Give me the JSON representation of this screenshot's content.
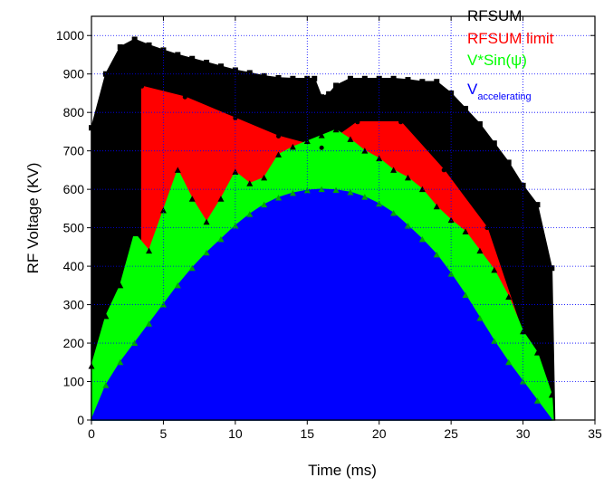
{
  "chart_data": {
    "type": "area",
    "xlabel": "Time (ms)",
    "ylabel": "RF Voltage (KV)",
    "xlim": [
      0,
      35
    ],
    "ylim": [
      0,
      1050
    ],
    "x_ticks": [
      "0",
      "5",
      "10",
      "15",
      "20",
      "25",
      "30",
      "35"
    ],
    "y_ticks": [
      "0",
      "100",
      "200",
      "300",
      "400",
      "500",
      "600",
      "700",
      "800",
      "900",
      "1000"
    ],
    "grid": "dotted, x and y",
    "legend": "top-right, text only",
    "series": [
      {
        "name": "RFSUM",
        "color": "#000000",
        "points": [
          [
            0,
            760
          ],
          [
            1,
            900
          ],
          [
            2,
            970
          ],
          [
            3,
            990
          ],
          [
            4,
            975
          ],
          [
            5,
            962
          ],
          [
            6,
            950
          ],
          [
            7,
            940
          ],
          [
            8,
            930
          ],
          [
            9,
            920
          ],
          [
            10,
            910
          ],
          [
            11,
            903
          ],
          [
            12,
            895
          ],
          [
            13,
            890
          ],
          [
            14,
            888
          ],
          [
            15,
            888
          ],
          [
            15.5,
            888
          ],
          [
            16,
            840
          ],
          [
            16.5,
            848
          ],
          [
            17,
            870
          ],
          [
            18,
            888
          ],
          [
            19,
            888
          ],
          [
            20,
            888
          ],
          [
            21,
            888
          ],
          [
            22,
            885
          ],
          [
            23,
            880
          ],
          [
            24,
            880
          ],
          [
            25,
            850
          ],
          [
            26,
            810
          ],
          [
            27,
            770
          ],
          [
            28,
            720
          ],
          [
            29,
            670
          ],
          [
            30,
            610
          ],
          [
            31,
            560
          ],
          [
            32,
            395
          ],
          [
            32.2,
            0
          ]
        ]
      },
      {
        "name": "RFSUM limit",
        "color": "#ff0000",
        "points": [
          [
            3.5,
            0
          ],
          [
            3.5,
            868
          ],
          [
            6.5,
            840
          ],
          [
            10,
            785
          ],
          [
            13,
            738
          ],
          [
            16,
            708
          ],
          [
            18.5,
            775
          ],
          [
            21.5,
            775
          ],
          [
            24.5,
            650
          ],
          [
            27.5,
            500
          ],
          [
            32,
            0
          ]
        ]
      },
      {
        "name": "V*Sin(ψ)",
        "color": "#00ff00",
        "points": [
          [
            0,
            140
          ],
          [
            1,
            270
          ],
          [
            2,
            350
          ],
          [
            3,
            485
          ],
          [
            4,
            440
          ],
          [
            5,
            545
          ],
          [
            6,
            650
          ],
          [
            7,
            575
          ],
          [
            8,
            515
          ],
          [
            9,
            575
          ],
          [
            10,
            645
          ],
          [
            11,
            615
          ],
          [
            12,
            630
          ],
          [
            13,
            690
          ],
          [
            14,
            710
          ],
          [
            15,
            725
          ],
          [
            16,
            740
          ],
          [
            17,
            755
          ],
          [
            18,
            730
          ],
          [
            19,
            700
          ],
          [
            20,
            680
          ],
          [
            21,
            650
          ],
          [
            22,
            630
          ],
          [
            23,
            600
          ],
          [
            24,
            555
          ],
          [
            25,
            520
          ],
          [
            26,
            490
          ],
          [
            27,
            440
          ],
          [
            28,
            390
          ],
          [
            29,
            320
          ],
          [
            30,
            230
          ],
          [
            31,
            175
          ],
          [
            32,
            65
          ],
          [
            32.1,
            0
          ]
        ]
      },
      {
        "name": "V",
        "name_subscript": "accelerating",
        "color": "#0000ff",
        "points": [
          [
            0,
            0
          ],
          [
            1,
            90
          ],
          [
            2,
            150
          ],
          [
            3,
            200
          ],
          [
            4,
            250
          ],
          [
            5,
            300
          ],
          [
            6,
            350
          ],
          [
            7,
            395
          ],
          [
            8,
            435
          ],
          [
            9,
            470
          ],
          [
            10,
            505
          ],
          [
            11,
            535
          ],
          [
            12,
            560
          ],
          [
            13,
            578
          ],
          [
            14,
            590
          ],
          [
            15,
            597
          ],
          [
            16,
            600
          ],
          [
            17,
            598
          ],
          [
            18,
            592
          ],
          [
            19,
            580
          ],
          [
            20,
            562
          ],
          [
            21,
            538
          ],
          [
            22,
            505
          ],
          [
            23,
            470
          ],
          [
            24,
            430
          ],
          [
            25,
            380
          ],
          [
            26,
            325
          ],
          [
            27,
            265
          ],
          [
            28,
            205
          ],
          [
            29,
            150
          ],
          [
            30,
            100
          ],
          [
            31,
            50
          ],
          [
            32,
            0
          ]
        ]
      }
    ]
  }
}
